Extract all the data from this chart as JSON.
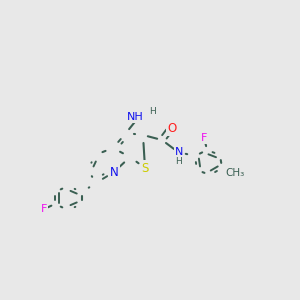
{
  "bg_color": "#e8e8e8",
  "bond_color": "#3a5f52",
  "atom_colors": {
    "N": "#1010ee",
    "S": "#cccc00",
    "O": "#ff2020",
    "F": "#ee10ee",
    "C": "#3a5f52",
    "H": "#3a5f52"
  },
  "figsize": [
    3.0,
    3.0
  ],
  "dpi": 100
}
